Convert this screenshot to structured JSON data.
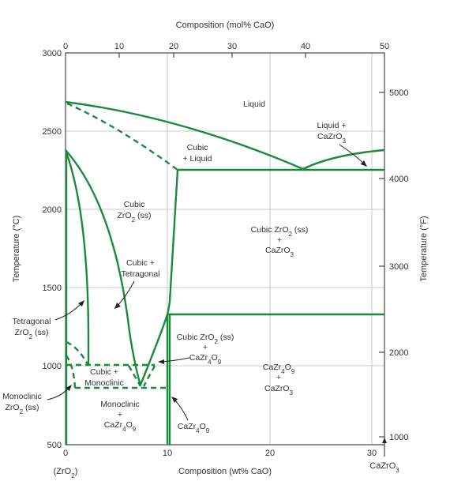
{
  "chart_data": {
    "type": "phase-diagram",
    "title": "",
    "top_axis": {
      "label": "Composition (mol% CaO)",
      "ticks": [
        "0",
        "10",
        "20",
        "30",
        "40",
        "50"
      ]
    },
    "bottom_axis": {
      "label": "Composition (wt% CaO)",
      "ticks": [
        "0",
        "10",
        "20",
        "30"
      ],
      "left_end_label": "(ZrO2)",
      "right_end_label": "CaZrO3"
    },
    "left_axis": {
      "label": "Temperature (°C)",
      "ticks": [
        "500",
        "1000",
        "1500",
        "2000",
        "2500",
        "3000"
      ],
      "ylim": [
        500,
        3000
      ]
    },
    "right_axis": {
      "label": "Temperature (°F)",
      "ticks": [
        "1000",
        "2000",
        "3000",
        "4000",
        "5000"
      ]
    },
    "regions": {
      "liquid": "Liquid",
      "liquid_cazro3_a": "Liquid +",
      "liquid_cazro3_b": "CaZrO3",
      "cubic_liquid_a": "Cubic",
      "cubic_liquid_b": "+ Liquid",
      "cubic_zro2_a": "Cubic",
      "cubic_zro2_b": "ZrO2 (ss)",
      "cubic_cazro3_a": "Cubic ZrO2 (ss)",
      "cubic_cazro3_plus": "+",
      "cubic_cazro3_b": "CaZrO3",
      "cubic_tetragonal_a": "Cubic +",
      "cubic_tetragonal_b": "Tetragonal",
      "tetragonal_a": "Tetragonal",
      "tetragonal_b": "ZrO2 (ss)",
      "cubic_cazr4o9_a": "Cubic ZrO2 (ss)",
      "cubic_cazr4o9_plus": "+",
      "cubic_cazr4o9_b": "CaZr4O9",
      "cazr4o9_cazro3_a": "CaZr4O9",
      "cazr4o9_cazro3_plus": "+",
      "cazr4o9_cazro3_b": "CaZrO3",
      "cubic_monoclinic_a": "Cubic +",
      "cubic_monoclinic_b": "Monoclinic",
      "monoclinic_a": "Monoclinic",
      "monoclinic_b": "ZrO2 (ss)",
      "mono_cazr4o9_a": "Monoclinic",
      "mono_cazr4o9_plus": "+",
      "mono_cazr4o9_b": "CaZr4O9",
      "cazr4o9": "CaZr4O9"
    },
    "colors": {
      "phase_line": "#1c8a3c",
      "grid": "#c8c8c8"
    },
    "invariants": [
      {
        "name": "eutectic",
        "wt_pct_cao": 23.5,
        "temperature_c": 2250
      },
      {
        "name": "zro2_melting",
        "wt_pct_cao": 0,
        "temperature_c": 2690
      },
      {
        "name": "cubic_cazro3_line",
        "temperature_c": 2250
      },
      {
        "name": "cazr4o9_decomposition",
        "temperature_c": 1310
      },
      {
        "name": "monoclinic_eutectoid_line",
        "temperature_c": 850
      },
      {
        "name": "cubic_tetragonal_eutectoid_line",
        "temperature_c": 1000
      }
    ]
  }
}
